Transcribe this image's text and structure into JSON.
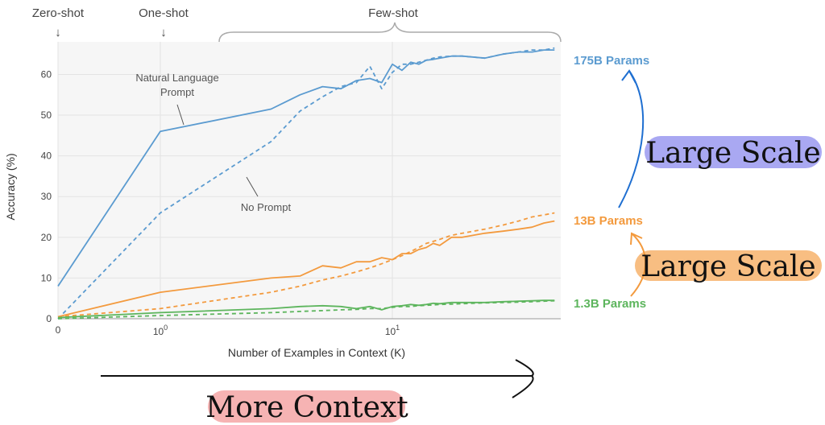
{
  "chart_data": {
    "type": "line",
    "xlabel": "Number of Examples in Context  (K)",
    "ylabel": "Accuracy (%)",
    "ylim": [
      0,
      68
    ],
    "xlim": [
      0,
      50
    ],
    "x_scale": "symlog",
    "x_ticks": [
      "0",
      "10^0",
      "10^1"
    ],
    "y_ticks": [
      0,
      10,
      20,
      30,
      40,
      50,
      60
    ],
    "grid": true,
    "x": [
      0,
      1,
      3,
      4,
      5,
      6,
      7,
      8,
      9,
      10,
      11,
      12,
      13,
      14,
      15,
      16,
      18,
      20,
      25,
      30,
      35,
      40,
      45,
      50
    ],
    "series": [
      {
        "name": "175B Params",
        "style": "solid",
        "color": "#5b9bd0",
        "values": [
          8,
          46,
          51.5,
          55,
          57,
          56.5,
          58.5,
          59,
          58,
          62.5,
          61,
          63,
          62.5,
          63.5,
          63.7,
          64,
          64.5,
          64.5,
          64,
          65,
          65.5,
          65.5,
          66,
          66
        ]
      },
      {
        "name": "175B Params",
        "style": "dashed",
        "color": "#5b9bd0",
        "values": [
          0,
          26,
          43.5,
          51,
          54.5,
          57,
          58,
          62,
          56.5,
          60.5,
          62.5,
          62.5,
          63,
          63.5,
          64,
          64.3,
          64.5,
          64.5,
          64,
          65,
          65.5,
          66,
          66,
          66.5
        ]
      },
      {
        "name": "13B Params",
        "style": "solid",
        "color": "#f39a3e",
        "values": [
          0.5,
          6.5,
          10,
          10.5,
          13,
          12.5,
          14,
          14,
          15,
          14.5,
          16,
          16,
          17,
          17.5,
          18.5,
          18,
          20,
          20,
          21,
          21.5,
          22,
          22.5,
          23.5,
          24
        ]
      },
      {
        "name": "13B Params",
        "style": "dashed",
        "color": "#f39a3e",
        "values": [
          0.5,
          2.5,
          6.5,
          8,
          9.5,
          10.5,
          11.5,
          12.5,
          13.5,
          14.5,
          15.5,
          16.5,
          17.5,
          18.5,
          19,
          19.5,
          20.5,
          21,
          22,
          23,
          24,
          25,
          25.5,
          26
        ]
      },
      {
        "name": "1.3B Params",
        "style": "solid",
        "color": "#5db55d",
        "values": [
          0.3,
          1.5,
          2.5,
          3,
          3.2,
          3,
          2.5,
          3,
          2.2,
          3,
          3.2,
          3.5,
          3.3,
          3.5,
          3.8,
          3.7,
          4,
          4,
          4,
          4.2,
          4.3,
          4.4,
          4.5,
          4.5
        ]
      },
      {
        "name": "1.3B Params",
        "style": "dashed",
        "color": "#5db55d",
        "values": [
          0,
          0.8,
          1.5,
          1.8,
          2,
          2.2,
          2.3,
          2.5,
          2.5,
          2.8,
          3,
          3,
          3.2,
          3.3,
          3.4,
          3.5,
          3.6,
          3.7,
          3.9,
          4,
          4.1,
          4.2,
          4.3,
          4.4
        ]
      }
    ]
  },
  "labels": {
    "zero_shot": "Zero-shot",
    "one_shot": "One-shot",
    "few_shot": "Few-shot",
    "natural_prompt_line1": "Natural Language",
    "natural_prompt_line2": "Prompt",
    "no_prompt": "No Prompt",
    "param_175": "175B Params",
    "param_13": "13B Params",
    "param_1_3": "1.3B Params",
    "large_scale_1": "Large Scale",
    "large_scale_2": "Large Scale",
    "more_context": "More Context"
  },
  "colors": {
    "blue": "#5b9bd0",
    "orange": "#f39a3e",
    "green": "#5db55d",
    "highlight_purple": "#a9a8f2",
    "highlight_orange": "#f8be82",
    "highlight_pink": "#f6b3b3",
    "arrow_blue": "#1f6fd1"
  }
}
